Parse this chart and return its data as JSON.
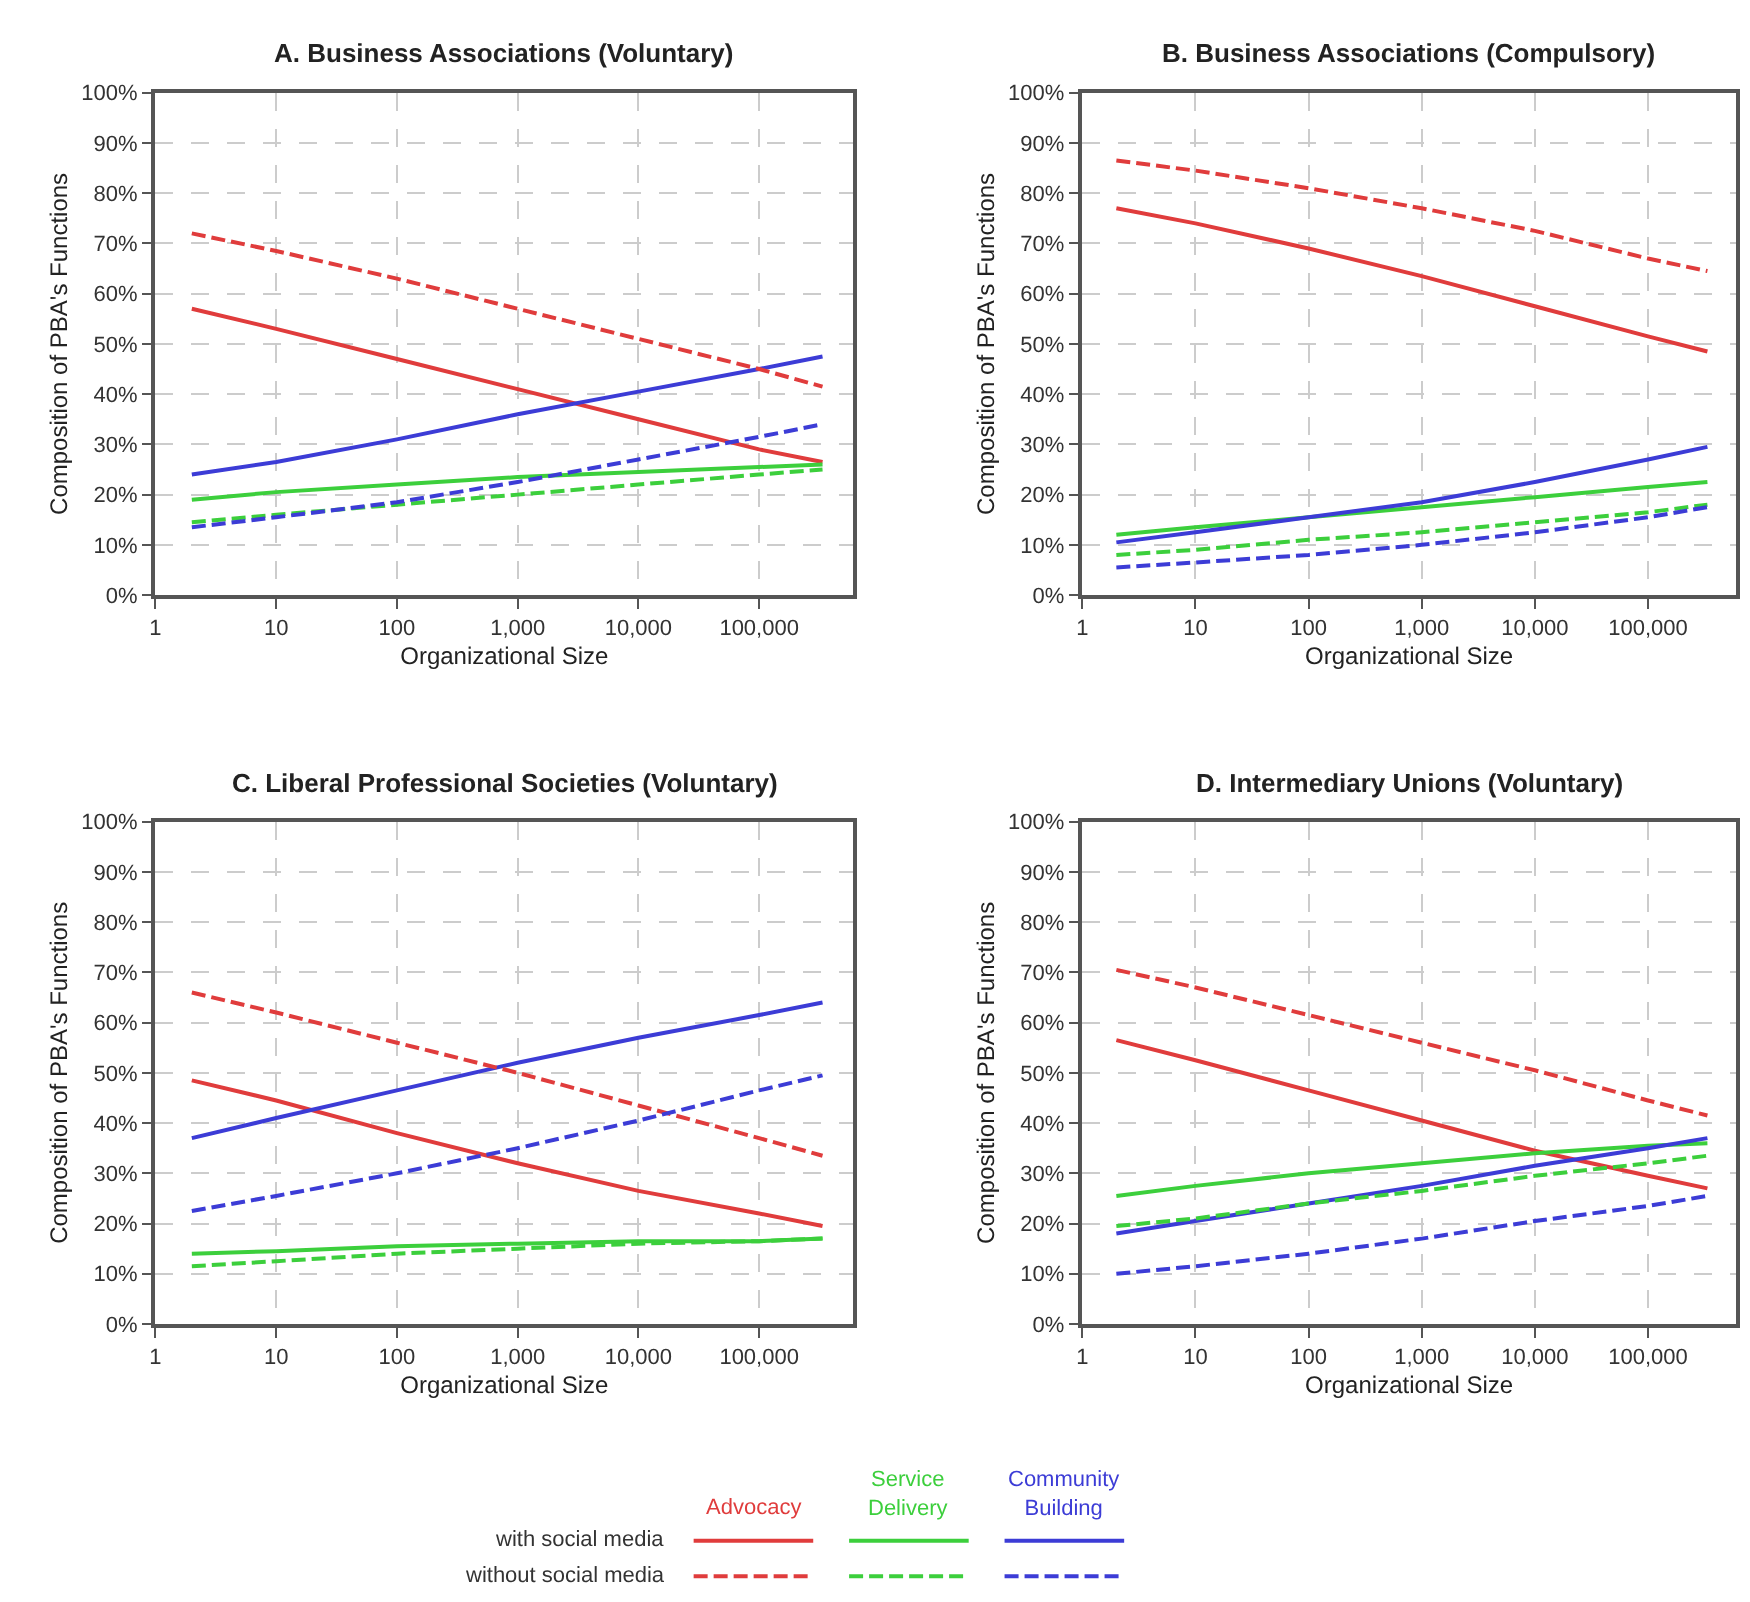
{
  "chart_data": [
    {
      "type": "line",
      "title": "A. Business Associations (Voluntary)",
      "xlabel": "Organizational Size",
      "ylabel": "Composition of PBA's Functions",
      "x": [
        2,
        10,
        100,
        1000,
        10000,
        100000,
        335000
      ],
      "log": "x",
      "xlim": [
        1,
        600000
      ],
      "ylim": [
        0,
        100
      ],
      "grid": true,
      "legend": "bottom",
      "annotations": [
        "with social media",
        "without social media"
      ],
      "xticks": [
        1,
        10,
        100,
        {
          "value": 1000,
          "label": "1,000"
        },
        {
          "value": 10000,
          "label": "10,000"
        },
        {
          "value": 100000,
          "label": "100,000"
        }
      ],
      "yticks": [
        {
          "value": 0,
          "label": "0%"
        },
        {
          "value": 10,
          "label": "10%"
        },
        {
          "value": 20,
          "label": "20%"
        },
        {
          "value": 30,
          "label": "30%"
        },
        {
          "value": 40,
          "label": "40%"
        },
        {
          "value": 50,
          "label": "50%"
        },
        {
          "value": 60,
          "label": "60%"
        },
        {
          "value": 70,
          "label": "70%"
        },
        {
          "value": 80,
          "label": "80%"
        },
        {
          "value": 90,
          "label": "90%"
        },
        {
          "value": 100,
          "label": "100%"
        }
      ],
      "series": [
        {
          "name": "Advocacy",
          "color": "#e03c3c",
          "line_style": "solid",
          "values": [
            57,
            53,
            47,
            41,
            35,
            29,
            26.5
          ]
        },
        {
          "name": "Service Delivery",
          "color": "#3ccf3c",
          "line_style": "solid",
          "values": [
            19,
            20.5,
            22,
            23.5,
            24.5,
            25.5,
            26
          ]
        },
        {
          "name": "Community Building",
          "color": "#3c3cd6",
          "line_style": "solid",
          "values": [
            24,
            26.5,
            31,
            36,
            40.5,
            45,
            47.5
          ]
        },
        {
          "color": "#e03c3c",
          "line_style": "dashed",
          "values": [
            72,
            68.5,
            63,
            57,
            51,
            45,
            41.5
          ]
        },
        {
          "color": "#3ccf3c",
          "line_style": "dashed",
          "values": [
            14.5,
            16,
            18,
            20,
            22,
            24,
            25
          ]
        },
        {
          "color": "#3c3cd6",
          "line_style": "dashed",
          "values": [
            13.5,
            15.5,
            18.5,
            22.5,
            27,
            31.5,
            34
          ]
        }
      ]
    },
    {
      "type": "line",
      "title": "B. Business Associations (Compulsory)",
      "xlabel": "Organizational Size",
      "ylabel": "Composition of PBA's Functions",
      "x": [
        2,
        10,
        100,
        1000,
        10000,
        100000,
        335000
      ],
      "log": "x",
      "xlim": [
        1,
        600000
      ],
      "ylim": [
        0,
        100
      ],
      "grid": true,
      "xticks": [
        1,
        10,
        100,
        {
          "value": 1000,
          "label": "1,000"
        },
        {
          "value": 10000,
          "label": "10,000"
        },
        {
          "value": 100000,
          "label": "100,000"
        }
      ],
      "yticks": [
        {
          "value": 0,
          "label": "0%"
        },
        {
          "value": 10,
          "label": "10%"
        },
        {
          "value": 20,
          "label": "20%"
        },
        {
          "value": 30,
          "label": "30%"
        },
        {
          "value": 40,
          "label": "40%"
        },
        {
          "value": 50,
          "label": "50%"
        },
        {
          "value": 60,
          "label": "60%"
        },
        {
          "value": 70,
          "label": "70%"
        },
        {
          "value": 80,
          "label": "80%"
        },
        {
          "value": 90,
          "label": "90%"
        },
        {
          "value": 100,
          "label": "100%"
        }
      ],
      "series": [
        {
          "color": "#e03c3c",
          "line_style": "solid",
          "values": [
            77,
            74,
            69,
            63.5,
            57.5,
            51.5,
            48.5
          ]
        },
        {
          "color": "#3ccf3c",
          "line_style": "solid",
          "values": [
            12,
            13.5,
            15.5,
            17.5,
            19.5,
            21.5,
            22.5
          ]
        },
        {
          "color": "#3c3cd6",
          "line_style": "solid",
          "values": [
            10.5,
            12.5,
            15.5,
            18.5,
            22.5,
            27,
            29.5
          ]
        },
        {
          "color": "#e03c3c",
          "line_style": "dashed",
          "values": [
            86.5,
            84.5,
            81,
            77,
            72.5,
            67,
            64.5
          ]
        },
        {
          "color": "#3ccf3c",
          "line_style": "dashed",
          "values": [
            8,
            9,
            11,
            12.5,
            14.5,
            16.5,
            18
          ]
        },
        {
          "color": "#3c3cd6",
          "line_style": "dashed",
          "values": [
            5.5,
            6.5,
            8,
            10,
            12.5,
            15.5,
            17.5
          ]
        }
      ]
    },
    {
      "type": "line",
      "title": "C. Liberal Professional Societies (Voluntary)",
      "xlabel": "Organizational Size",
      "ylabel": "Composition of PBA's Functions",
      "x": [
        2,
        10,
        100,
        1000,
        10000,
        100000,
        335000
      ],
      "log": "x",
      "xlim": [
        1,
        600000
      ],
      "ylim": [
        0,
        100
      ],
      "grid": true,
      "xticks": [
        1,
        10,
        100,
        {
          "value": 1000,
          "label": "1,000"
        },
        {
          "value": 10000,
          "label": "10,000"
        },
        {
          "value": 100000,
          "label": "100,000"
        }
      ],
      "yticks": [
        {
          "value": 0,
          "label": "0%"
        },
        {
          "value": 10,
          "label": "10%"
        },
        {
          "value": 20,
          "label": "20%"
        },
        {
          "value": 30,
          "label": "30%"
        },
        {
          "value": 40,
          "label": "40%"
        },
        {
          "value": 50,
          "label": "50%"
        },
        {
          "value": 60,
          "label": "60%"
        },
        {
          "value": 70,
          "label": "70%"
        },
        {
          "value": 80,
          "label": "80%"
        },
        {
          "value": 90,
          "label": "90%"
        },
        {
          "value": 100,
          "label": "100%"
        }
      ],
      "series": [
        {
          "color": "#e03c3c",
          "line_style": "solid",
          "values": [
            48.5,
            44.5,
            38,
            32,
            26.5,
            22,
            19.5
          ]
        },
        {
          "color": "#3ccf3c",
          "line_style": "solid",
          "values": [
            14,
            14.5,
            15.5,
            16,
            16.5,
            16.5,
            17
          ]
        },
        {
          "color": "#3c3cd6",
          "line_style": "solid",
          "values": [
            37,
            41,
            46.5,
            52,
            57,
            61.5,
            64
          ]
        },
        {
          "color": "#e03c3c",
          "line_style": "dashed",
          "values": [
            66,
            62,
            56,
            50,
            43.5,
            37,
            33.5
          ]
        },
        {
          "color": "#3ccf3c",
          "line_style": "dashed",
          "values": [
            11.5,
            12.5,
            14,
            15,
            16,
            16.5,
            17
          ]
        },
        {
          "color": "#3c3cd6",
          "line_style": "dashed",
          "values": [
            22.5,
            25.5,
            30,
            35,
            40.5,
            46.5,
            49.5
          ]
        }
      ]
    },
    {
      "type": "line",
      "title": "D. Intermediary Unions (Voluntary)",
      "xlabel": "Organizational Size",
      "ylabel": "Composition of PBA's Functions",
      "x": [
        2,
        10,
        100,
        1000,
        10000,
        100000,
        335000
      ],
      "log": "x",
      "xlim": [
        1,
        600000
      ],
      "ylim": [
        0,
        100
      ],
      "grid": true,
      "xticks": [
        1,
        10,
        100,
        {
          "value": 1000,
          "label": "1,000"
        },
        {
          "value": 10000,
          "label": "10,000"
        },
        {
          "value": 100000,
          "label": "100,000"
        }
      ],
      "yticks": [
        {
          "value": 0,
          "label": "0%"
        },
        {
          "value": 10,
          "label": "10%"
        },
        {
          "value": 20,
          "label": "20%"
        },
        {
          "value": 30,
          "label": "30%"
        },
        {
          "value": 40,
          "label": "40%"
        },
        {
          "value": 50,
          "label": "50%"
        },
        {
          "value": 60,
          "label": "60%"
        },
        {
          "value": 70,
          "label": "70%"
        },
        {
          "value": 80,
          "label": "80%"
        },
        {
          "value": 90,
          "label": "90%"
        },
        {
          "value": 100,
          "label": "100%"
        }
      ],
      "series": [
        {
          "color": "#e03c3c",
          "line_style": "solid",
          "values": [
            56.5,
            52.5,
            46.5,
            40.5,
            34.5,
            29.5,
            27
          ]
        },
        {
          "color": "#3ccf3c",
          "line_style": "solid",
          "values": [
            25.5,
            27.5,
            30,
            32,
            34,
            35.5,
            36
          ]
        },
        {
          "color": "#3c3cd6",
          "line_style": "solid",
          "values": [
            18,
            20.5,
            24,
            27.5,
            31.5,
            35,
            37
          ]
        },
        {
          "color": "#e03c3c",
          "line_style": "dashed",
          "values": [
            70.5,
            67,
            61.5,
            56,
            50.5,
            44.5,
            41.5
          ]
        },
        {
          "color": "#3ccf3c",
          "line_style": "dashed",
          "values": [
            19.5,
            21,
            24,
            26.5,
            29.5,
            32,
            33.5
          ]
        },
        {
          "color": "#3c3cd6",
          "line_style": "dashed",
          "values": [
            10,
            11.5,
            14,
            17,
            20.5,
            23.5,
            25.5
          ]
        }
      ]
    }
  ]
}
